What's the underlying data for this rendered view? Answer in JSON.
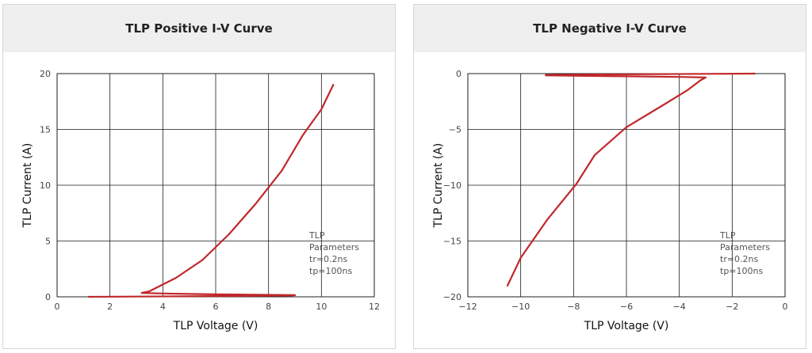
{
  "colors": {
    "curve": "#c0282b",
    "grid": "#1a1a1a",
    "header_bg": "#efefef"
  },
  "chart_data": [
    {
      "type": "line",
      "title": "TLP Positive I-V Curve",
      "xlabel": "TLP Voltage (V)",
      "ylabel": "TLP Current (A)",
      "xlim": [
        0,
        12
      ],
      "ylim": [
        0,
        20
      ],
      "xticks": [
        0,
        2,
        4,
        6,
        8,
        10,
        12
      ],
      "yticks": [
        0,
        5,
        10,
        15,
        20
      ],
      "grid": true,
      "annotation": [
        "TLP",
        "Parameters",
        "tr=0.2ns",
        "tp=100ns"
      ],
      "series": [
        {
          "x": [
            1.2,
            3,
            5,
            7,
            8.9,
            9.0,
            6,
            4,
            3.2,
            3.5,
            4.5,
            5.5,
            6.5,
            7.5,
            8.5,
            9.3,
            10.0,
            10.45
          ],
          "y": [
            0.0,
            0.02,
            0.05,
            0.08,
            0.12,
            0.15,
            0.22,
            0.3,
            0.35,
            0.5,
            1.7,
            3.3,
            5.6,
            8.3,
            11.3,
            14.5,
            16.8,
            19.0
          ]
        }
      ]
    },
    {
      "type": "line",
      "title": "TLP Negative I-V Curve",
      "xlabel": "TLP Voltage (V)",
      "ylabel": "TLP Current (A)",
      "xlim": [
        -12,
        0
      ],
      "ylim": [
        -20,
        0
      ],
      "xticks": [
        -12,
        -10,
        -8,
        -6,
        -4,
        -2,
        0
      ],
      "yticks": [
        0,
        -5,
        -10,
        -15,
        -20
      ],
      "grid": true,
      "annotation": [
        "TLP",
        "Parameters",
        "tr=0.2ns",
        "tp=100ns"
      ],
      "series": [
        {
          "x": [
            -1.15,
            -3,
            -5,
            -7,
            -9.05,
            -9.05,
            -6,
            -4,
            -3.0,
            -3.2,
            -3.7,
            -4.6,
            -6.0,
            -7.2,
            -7.9,
            -9.0,
            -10.0,
            -10.5
          ],
          "y": [
            0.0,
            -0.02,
            -0.05,
            -0.08,
            -0.12,
            -0.16,
            -0.24,
            -0.3,
            -0.35,
            -0.6,
            -1.5,
            -2.8,
            -4.8,
            -7.3,
            -9.9,
            -13.1,
            -16.5,
            -19.0
          ]
        }
      ]
    }
  ]
}
